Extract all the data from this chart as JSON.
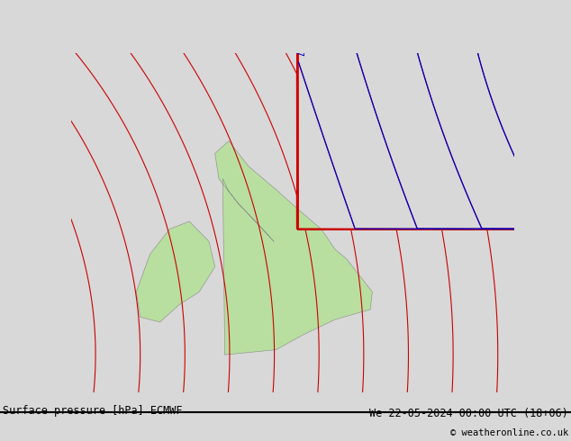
{
  "title_left": "Surface pressure [hPa] ECMWF",
  "title_right": "We 22-05-2024 00:00 UTC (18+06)",
  "copyright": "© weatheronline.co.uk",
  "bg_color": "#d8d8d8",
  "land_color": "#b8dfa0",
  "sea_color": "#d8d8d8",
  "border_color": "#888888",
  "blue_contour_color": "#0000cc",
  "red_contour_color": "#cc0000",
  "black_contour_color": "#000000",
  "font_size_label": 7.5,
  "font_size_title": 8.5,
  "font_size_copy": 7.5,
  "lon_min": -13.5,
  "lon_max": 9.0,
  "lat_min": 48.5,
  "lat_max": 62.0
}
